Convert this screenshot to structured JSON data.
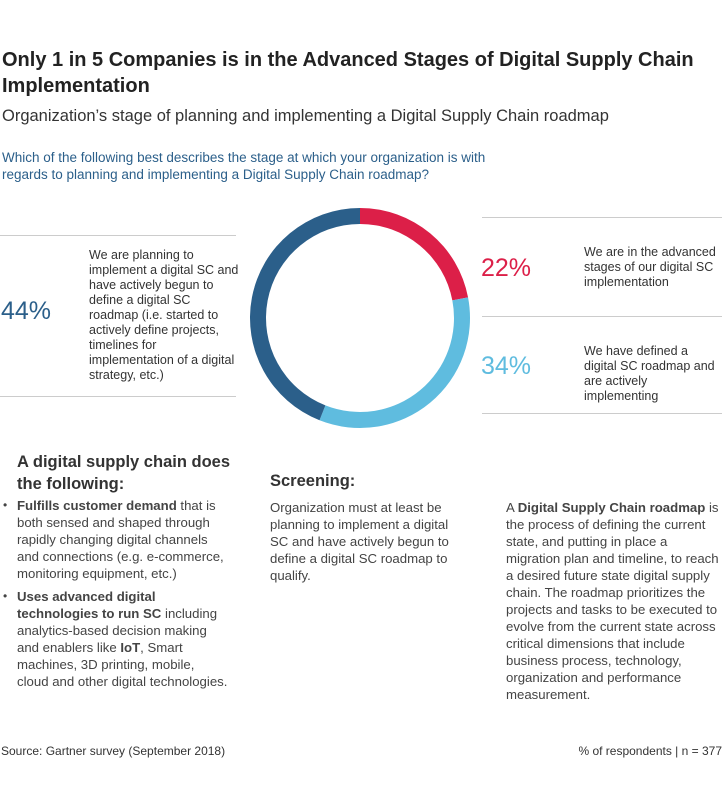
{
  "title": "Only 1 in 5 Companies is in the Advanced Stages of Digital Supply Chain Implementation",
  "subtitle": "Organization’s stage of planning and implementing a Digital Supply Chain roadmap",
  "question": "Which of the following best describes the stage at which your organization is with regards to planning and implementing a Digital Supply Chain roadmap?",
  "chart_data": {
    "type": "pie",
    "donut": true,
    "start": "top, clockwise",
    "slices": [
      {
        "label": "We are in the advanced stages of our digital SC implementation",
        "value": 22,
        "value_label": "22%",
        "color": "#dc1f48"
      },
      {
        "label": "We have defined a digital SC roadmap and are actively implementing",
        "value": 34,
        "value_label": "34%",
        "color": "#5fbcdf"
      },
      {
        "label": "We are planning to implement a digital SC and have actively begun to define a digital SC roadmap (i.e. started to actively define projects, timelines for implementation of a digital strategy, etc.)",
        "value": 44,
        "value_label": "44%",
        "color": "#2b5f8a"
      }
    ]
  },
  "definition": {
    "heading": "A digital supply chain does the following:",
    "bullets": [
      {
        "bold": "Fulfills customer demand",
        "text": " that is both sensed and shaped through rapidly changing digital channels and connections (e.g. e-commerce, monitoring equipment, etc.)"
      },
      {
        "bold": "Uses advanced digital technologies to run SC",
        "text_a": " including analytics-based decision making and enablers like ",
        "bold2": "IoT",
        "text_b": ", Smart machines, 3D printing, mobile, cloud and other digital technologies."
      }
    ]
  },
  "screening": {
    "heading": "Screening:",
    "text": "Organization must at least be planning to implement a digital SC and have actively begun to define a digital SC roadmap to qualify."
  },
  "roadmap": {
    "prefix": "A ",
    "bold": "Digital Supply Chain roadmap",
    "text": " is the process of defining the current state, and putting in place a migration plan and timeline, to reach a desired future state digital supply chain. The roadmap prioritizes the projects and tasks to be executed to evolve from the current state across critical dimensions that include business process, technology, organization and performance measurement."
  },
  "footer": {
    "source": "Source: Gartner survey (September 2018)",
    "note": "% of respondents | n = 377"
  }
}
